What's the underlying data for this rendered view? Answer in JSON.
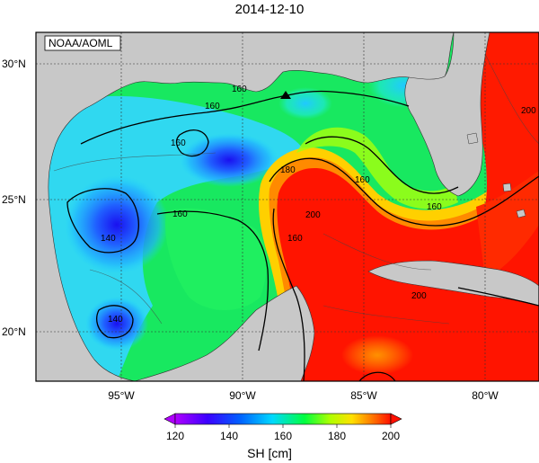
{
  "title": "2014-12-10",
  "credit": "NOAA/AOML",
  "map": {
    "lon_ticks": [
      "95°W",
      "90°W",
      "85°W",
      "80°W"
    ],
    "lat_ticks": [
      "30°N",
      "25°N",
      "20°N"
    ],
    "contour_labels": [
      "160",
      "160",
      "160",
      "160",
      "160",
      "160",
      "140",
      "140",
      "180",
      "200",
      "200",
      "200",
      "160"
    ]
  },
  "colorbar": {
    "label": "SH [cm]",
    "ticks": [
      "120",
      "140",
      "160",
      "180",
      "200"
    ],
    "colors": [
      "#d000f0",
      "#2030ff",
      "#20e0ff",
      "#20ff40",
      "#ffff00",
      "#ff8000",
      "#ff0000"
    ]
  },
  "colors": {
    "land": "#c8c8c8",
    "ocean_low": "#2530e6",
    "ocean_mid": "#00e060",
    "ocean_high": "#ff1a00"
  }
}
